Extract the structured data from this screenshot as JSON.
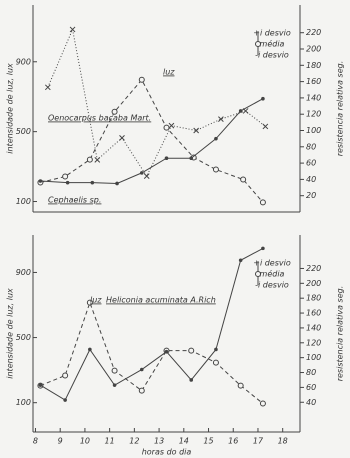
{
  "chart_data": [
    {
      "type": "line",
      "ylabel": "intensidade de luz, lux",
      "y2label": "resistencia relativa seg.",
      "xlim": [
        7.9,
        18.7
      ],
      "ylim": [
        40,
        1225
      ],
      "yticks": [
        100,
        500,
        900
      ],
      "y2lim": [
        0,
        254
      ],
      "y2ticks": [
        20,
        40,
        60,
        80,
        100,
        120,
        140,
        160,
        180,
        200,
        220
      ],
      "legend_labels": [
        "+i desvio",
        "média",
        "-i desvio"
      ],
      "series": [
        {
          "name": "luz",
          "color": "#444",
          "style": "dashed",
          "marker": "circle",
          "x": [
            8.2,
            9.2,
            10.2,
            11.2,
            12.3,
            13.3,
            14.4,
            15.3,
            16.4,
            17.2
          ],
          "values": [
            209,
            243,
            340,
            614,
            797,
            523,
            352,
            283,
            226,
            95
          ]
        },
        {
          "name": "Oenocarpus bacaba Mart.",
          "color": "#444",
          "style": "dotted",
          "marker": "x",
          "axis": "y2",
          "x": [
            8.5,
            9.5,
            10.5,
            11.5,
            12.5,
            13.5,
            14.5,
            15.5,
            16.5,
            17.3
          ],
          "values": [
            153,
            224,
            64,
            91,
            44,
            106,
            100,
            114,
            124,
            105
          ]
        },
        {
          "name": "Cephaelis sp.",
          "color": "#444",
          "style": "solid",
          "marker": "dot",
          "axis": "y2",
          "x": [
            8.2,
            9.3,
            10.3,
            11.3,
            12.3,
            13.3,
            14.3,
            15.3,
            16.3,
            17.2
          ],
          "values": [
            38,
            36,
            36,
            35,
            48,
            66,
            66,
            90,
            124,
            139
          ]
        }
      ]
    },
    {
      "type": "line",
      "ylabel": "intensidade de luz, lux",
      "y2label": "resistencia relativa seg.",
      "xlabel": "horas do dia",
      "xlim": [
        7.9,
        18.7
      ],
      "xticks": [
        8,
        9,
        10,
        11,
        12,
        13,
        14,
        15,
        16,
        17,
        18
      ],
      "ylim": [
        -80,
        1130
      ],
      "yticks": [
        100,
        500,
        900
      ],
      "y2lim": [
        0,
        265
      ],
      "y2ticks": [
        40,
        60,
        80,
        100,
        120,
        140,
        160,
        180,
        200,
        220
      ],
      "legend_labels": [
        "+i desvio",
        "média",
        "-i desvio"
      ],
      "series": [
        {
          "name": "luz",
          "color": "#444",
          "style": "dashed",
          "marker": "circle",
          "x": [
            8.2,
            9.2,
            10.2,
            11.2,
            12.3,
            13.3,
            14.3,
            15.3,
            16.3,
            17.2
          ],
          "values": [
            205,
            267,
            715,
            297,
            174,
            420,
            420,
            346,
            205,
            95
          ]
        },
        {
          "name": "Heliconia acuminata A.Rich",
          "color": "#444",
          "style": "solid",
          "marker": "dot",
          "axis": "y2",
          "x": [
            8.2,
            9.2,
            10.2,
            11.2,
            12.3,
            13.3,
            14.3,
            15.3,
            16.3,
            17.2
          ],
          "values": [
            63,
            43,
            111,
            63,
            84,
            108,
            70,
            111,
            231,
            247
          ]
        }
      ]
    }
  ]
}
